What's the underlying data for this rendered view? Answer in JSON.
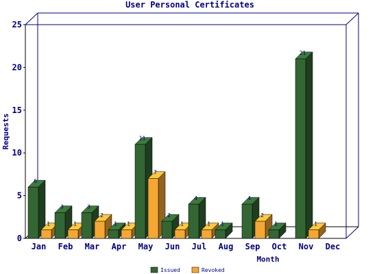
{
  "chart_data": {
    "type": "bar",
    "title": "User Personal Certificates",
    "xlabel": "Month",
    "ylabel": "Requests",
    "categories": [
      "Jan",
      "Feb",
      "Mar",
      "Apr",
      "May",
      "Jun",
      "Jul",
      "Aug",
      "Sep",
      "Oct",
      "Nov",
      "Dec"
    ],
    "series": [
      {
        "name": "Issued",
        "color": "#336633",
        "values": [
          6,
          3,
          3,
          1,
          11,
          2,
          4,
          1,
          4,
          1,
          21,
          null
        ]
      },
      {
        "name": "Revoked",
        "color": "#f5a733",
        "values": [
          1,
          1,
          2,
          1,
          7,
          1,
          1,
          null,
          2,
          null,
          1,
          null
        ]
      }
    ],
    "data_labels": [
      [
        "6",
        "3",
        "3",
        "1",
        "11",
        "2",
        "4",
        "1",
        "4",
        "1",
        "21",
        ""
      ],
      [
        "1",
        "1",
        "2",
        "1",
        "7",
        "1",
        "1",
        "",
        "2",
        "",
        "1",
        ""
      ]
    ],
    "yticks": [
      "0",
      "5",
      "10",
      "15",
      "20",
      "25"
    ],
    "ylim": [
      0,
      25
    ],
    "grid": false,
    "legend_position": "bottom"
  }
}
